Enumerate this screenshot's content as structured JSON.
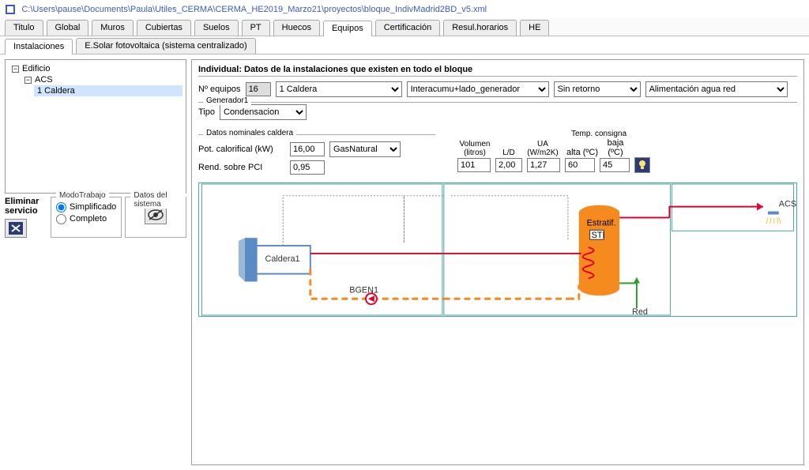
{
  "window": {
    "title": "C:\\Users\\pause\\Documents\\Paula\\Utiles_CERMA\\CERMA_HE2019_Marzo21\\proyectos\\bloque_IndivMadrid2BD_v5.xml"
  },
  "main_tabs": [
    "Titulo",
    "Global",
    "Muros",
    "Cubiertas",
    "Suelos",
    "PT",
    "Huecos",
    "Equipos",
    "Certificación",
    "Resul.horarios",
    "HE"
  ],
  "main_tabs_active": 7,
  "sub_tabs": [
    "Instalaciones",
    "E.Solar fotovoltaica (sistema centralizado)"
  ],
  "sub_tabs_active": 0,
  "tree": {
    "root": "Edificio",
    "level1": "ACS",
    "level2": "1 Caldera"
  },
  "left_controls": {
    "eliminar": "Eliminar servicio",
    "modo_title": "ModoTrabajo",
    "modo_options": [
      "Simplificado",
      "Completo"
    ],
    "modo_selected": 0,
    "datos_title": "Datos del sistema"
  },
  "form": {
    "title": "Individual: Datos de la instalaciones que existen en todo el bloque",
    "n_equipos_label": "Nº equipos",
    "n_equipos": "16",
    "caldera_select": "1 Caldera",
    "config_select": "Interacumu+lado_generador",
    "retorno_select": "Sin retorno",
    "alim_select": "Alimentación agua red",
    "gen_label": "Generador1",
    "tipo_label": "Tipo",
    "tipo_select": "Condensacion",
    "datos_nom_label": "Datos nominales caldera",
    "pot_label": "Pot. calorifical (kW)",
    "pot_val": "16,00",
    "combustible": "GasNatural",
    "rend_label": "Rend. sobre PCI",
    "rend_val": "0,95",
    "headers": {
      "vol": "Volumen (litros)",
      "ld": "L/D",
      "ua": "UA (W/m2K)",
      "tc": "Temp. consigna",
      "alta": "alta (ºC)",
      "baja": "baja (ºC)"
    },
    "vol": "101",
    "ld": "2,00",
    "ua": "1,27",
    "alta": "60",
    "baja": "45"
  },
  "diagram": {
    "caldera": "Caldera1",
    "bgen": "BGEN1",
    "estratif": "Estratif.",
    "sti": "STI",
    "red": "Red",
    "acs": "ACS",
    "colors": {
      "border": "#4aa3a3",
      "boiler": "#5a8bc4",
      "tank": "#f58a1f",
      "hot": "#e4002b",
      "dash": "#f58a1f",
      "dot": "#808080",
      "green": "#2a9d2a"
    }
  }
}
